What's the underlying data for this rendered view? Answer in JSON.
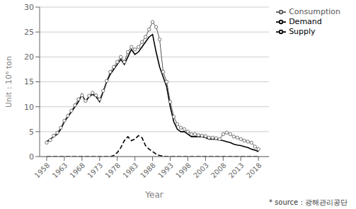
{
  "chart_data": {
    "type": "line",
    "xlabel": "Year",
    "ylabel": "Unit : 10⁶ ton",
    "annotations": [
      "* source : 광해관리공단"
    ],
    "x": [
      1958,
      1959,
      1960,
      1961,
      1962,
      1963,
      1964,
      1965,
      1966,
      1967,
      1968,
      1969,
      1970,
      1971,
      1972,
      1973,
      1974,
      1975,
      1976,
      1977,
      1978,
      1979,
      1980,
      1981,
      1982,
      1983,
      1984,
      1985,
      1986,
      1987,
      1988,
      1989,
      1990,
      1991,
      1992,
      1993,
      1994,
      1995,
      1996,
      1997,
      1998,
      1999,
      2000,
      2001,
      2002,
      2003,
      2004,
      2005,
      2006,
      2007,
      2008,
      2009,
      2010,
      2011,
      2012,
      2013,
      2014,
      2015,
      2016,
      2017,
      2018
    ],
    "series": [
      {
        "name": "Supply",
        "color": "#000000",
        "line_style": "solid",
        "values": [
          3.0,
          3.5,
          4.0,
          4.5,
          5.5,
          7.0,
          8.0,
          9.0,
          10.0,
          11.0,
          12.5,
          11.0,
          12.0,
          12.5,
          12.0,
          11.0,
          13.0,
          15.0,
          16.5,
          17.5,
          18.5,
          19.5,
          18.5,
          20.0,
          21.5,
          20.5,
          21.0,
          22.0,
          23.0,
          24.0,
          24.5,
          21.0,
          18.0,
          16.0,
          14.0,
          10.0,
          7.0,
          5.5,
          5.0,
          5.0,
          4.5,
          4.0,
          4.0,
          4.0,
          4.0,
          3.8,
          3.5,
          3.5,
          3.5,
          3.3,
          3.2,
          3.0,
          2.8,
          2.5,
          2.3,
          2.2,
          2.0,
          1.8,
          1.5,
          1.3,
          1.0
        ]
      },
      {
        "name": "Demand",
        "color": "#000000",
        "line_style": "dashed",
        "values": [
          0.0,
          0.0,
          0.0,
          0.0,
          0.0,
          0.0,
          0.0,
          0.0,
          0.0,
          0.0,
          0.0,
          0.0,
          0.0,
          0.0,
          0.0,
          0.0,
          0.0,
          0.0,
          0.0,
          0.2,
          0.8,
          1.8,
          3.2,
          4.0,
          3.2,
          3.5,
          4.2,
          3.8,
          2.2,
          1.5,
          1.0,
          0.5,
          0.2,
          0.1,
          0.0,
          0.0,
          0.0,
          0.0,
          0.0,
          0.0,
          0.0,
          0.0,
          0.0,
          0.0,
          0.0,
          0.0,
          0.0,
          0.0,
          0.0,
          0.0,
          0.0,
          0.0,
          0.0,
          0.0,
          0.0,
          0.0,
          0.0,
          0.0,
          0.0,
          0.0,
          0.0
        ]
      },
      {
        "name": "Consumption",
        "color": "#555555",
        "line_style": "solid",
        "marker": "circle",
        "values": [
          2.8,
          3.3,
          4.2,
          4.8,
          5.8,
          7.2,
          8.2,
          9.2,
          10.3,
          11.5,
          12.3,
          11.2,
          12.2,
          12.8,
          12.3,
          11.5,
          13.2,
          15.2,
          17.0,
          18.0,
          19.0,
          20.0,
          19.0,
          21.0,
          22.0,
          21.5,
          22.0,
          23.0,
          24.0,
          25.5,
          27.0,
          26.0,
          23.5,
          17.0,
          15.0,
          11.0,
          8.0,
          6.5,
          5.8,
          5.5,
          5.0,
          4.5,
          4.5,
          4.3,
          4.2,
          4.1,
          3.8,
          3.8,
          3.7,
          3.5,
          4.5,
          4.8,
          4.5,
          4.0,
          3.8,
          3.5,
          3.2,
          3.0,
          2.8,
          2.0,
          1.5
        ]
      }
    ],
    "xlim": [
      1956,
      2021
    ],
    "xticks": [
      1958,
      1963,
      1968,
      1973,
      1978,
      1983,
      1988,
      1993,
      1998,
      2003,
      2008,
      2013,
      2018
    ],
    "ylim": [
      0,
      30
    ],
    "yticks": [
      0,
      5,
      10,
      15,
      20,
      25,
      30
    ],
    "grid": true,
    "legend": "upper right"
  }
}
